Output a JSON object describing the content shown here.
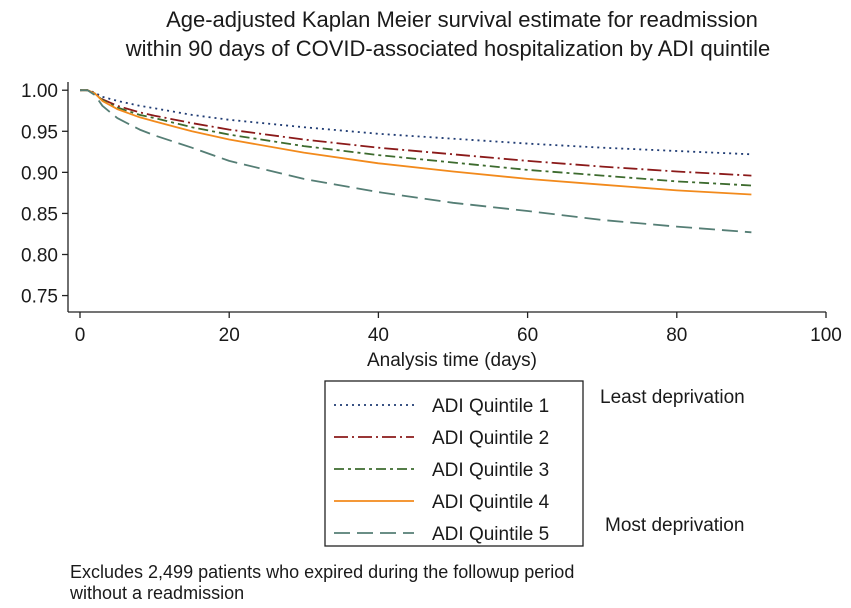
{
  "chart_data": {
    "type": "line",
    "title_lines": [
      "Age-adjusted Kaplan Meier survival estimate for readmission",
      "within 90 days of COVID-associated hospitalization by ADI quintile"
    ],
    "xlabel": "Analysis time (days)",
    "ylabel": "",
    "xlim": [
      0,
      100
    ],
    "ylim": [
      0.73,
      1.01
    ],
    "xticks": [
      "0",
      "20",
      "40",
      "60",
      "80",
      "100"
    ],
    "yticks": [
      "1.00",
      "0.95",
      "0.90",
      "0.85",
      "0.80",
      "0.75"
    ],
    "grid": false,
    "x": [
      0,
      1,
      2,
      3,
      5,
      8,
      10,
      15,
      20,
      30,
      40,
      50,
      60,
      70,
      80,
      90
    ],
    "series": [
      {
        "name": "ADI Quintile 1",
        "color": "#1f3b73",
        "dash": "dot",
        "values": [
          1.0,
          1.0,
          0.997,
          0.992,
          0.987,
          0.981,
          0.978,
          0.97,
          0.964,
          0.955,
          0.947,
          0.941,
          0.935,
          0.93,
          0.926,
          0.922
        ]
      },
      {
        "name": "ADI Quintile 2",
        "color": "#8b1a1a",
        "dash": "dashdot",
        "values": [
          1.0,
          1.0,
          0.996,
          0.989,
          0.981,
          0.973,
          0.969,
          0.96,
          0.952,
          0.94,
          0.93,
          0.922,
          0.914,
          0.907,
          0.901,
          0.896
        ]
      },
      {
        "name": "ADI Quintile 3",
        "color": "#3d6b2e",
        "dash": "dashdotlong",
        "values": [
          1.0,
          1.0,
          0.996,
          0.988,
          0.979,
          0.97,
          0.966,
          0.955,
          0.946,
          0.932,
          0.921,
          0.912,
          0.903,
          0.896,
          0.889,
          0.884
        ]
      },
      {
        "name": "ADI Quintile 4",
        "color": "#f28a1c",
        "dash": "solid",
        "values": [
          1.0,
          1.0,
          0.996,
          0.987,
          0.977,
          0.967,
          0.962,
          0.95,
          0.94,
          0.924,
          0.911,
          0.901,
          0.892,
          0.885,
          0.878,
          0.873
        ]
      },
      {
        "name": "ADI Quintile 5",
        "color": "#557e75",
        "dash": "longdash",
        "values": [
          1.0,
          1.0,
          0.994,
          0.981,
          0.966,
          0.952,
          0.945,
          0.93,
          0.914,
          0.892,
          0.876,
          0.863,
          0.853,
          0.842,
          0.834,
          0.827
        ]
      }
    ],
    "legend": {
      "items": [
        "ADI Quintile 1",
        "ADI Quintile 2",
        "ADI Quintile 3",
        "ADI Quintile 4",
        "ADI Quintile 5"
      ],
      "annotation_top": "Least deprivation",
      "annotation_bottom": "Most deprivation"
    },
    "footnote_lines": [
      "Excludes 2,499 patients who expired during the followup period",
      "without a readmission"
    ]
  }
}
